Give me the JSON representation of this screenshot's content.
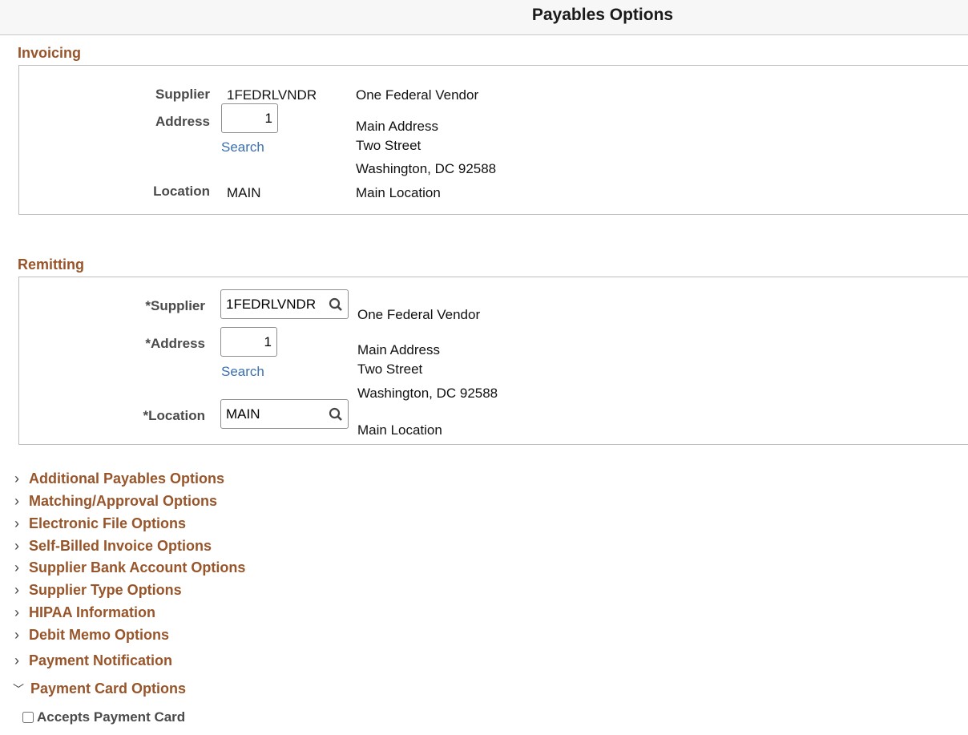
{
  "header": {
    "title": "Payables Options"
  },
  "invoicing": {
    "title": "Invoicing",
    "supplier_label": "Supplier",
    "supplier_id": "1FEDRLVNDR",
    "supplier_name": "One Federal Vendor",
    "address_label": "Address",
    "address_value": "1",
    "search_link": "Search",
    "address_lines": [
      "Main Address",
      "Two Street",
      "Washington, DC  92588"
    ],
    "location_label": "Location",
    "location_value": "MAIN",
    "location_name": "Main Location"
  },
  "remitting": {
    "title": "Remitting",
    "supplier_label": "*Supplier",
    "supplier_value": "1FEDRLVNDR",
    "supplier_name": "One Federal Vendor",
    "address_label": "*Address",
    "address_value": "1",
    "search_link": "Search",
    "address_lines": [
      "Main Address",
      "Two Street",
      "Washington, DC  92588"
    ],
    "location_label": "*Location",
    "location_value": "MAIN",
    "location_name": "Main Location"
  },
  "collapsibles": [
    {
      "label": "Additional Payables Options",
      "expanded": false
    },
    {
      "label": "Matching/Approval Options",
      "expanded": false
    },
    {
      "label": "Electronic File Options",
      "expanded": false
    },
    {
      "label": "Self-Billed Invoice Options",
      "expanded": false
    },
    {
      "label": "Supplier Bank Account Options",
      "expanded": false
    },
    {
      "label": "Supplier Type Options",
      "expanded": false
    },
    {
      "label": "HIPAA Information",
      "expanded": false
    },
    {
      "label": "Debit Memo Options",
      "expanded": false
    },
    {
      "label": "Payment Notification",
      "expanded": false
    },
    {
      "label": "Payment Card Options",
      "expanded": true
    }
  ],
  "payment_card": {
    "accepts_label": "Accepts Payment Card",
    "accepts_checked": false
  },
  "colors": {
    "section": "#98552a",
    "link": "#3a6fb0"
  }
}
